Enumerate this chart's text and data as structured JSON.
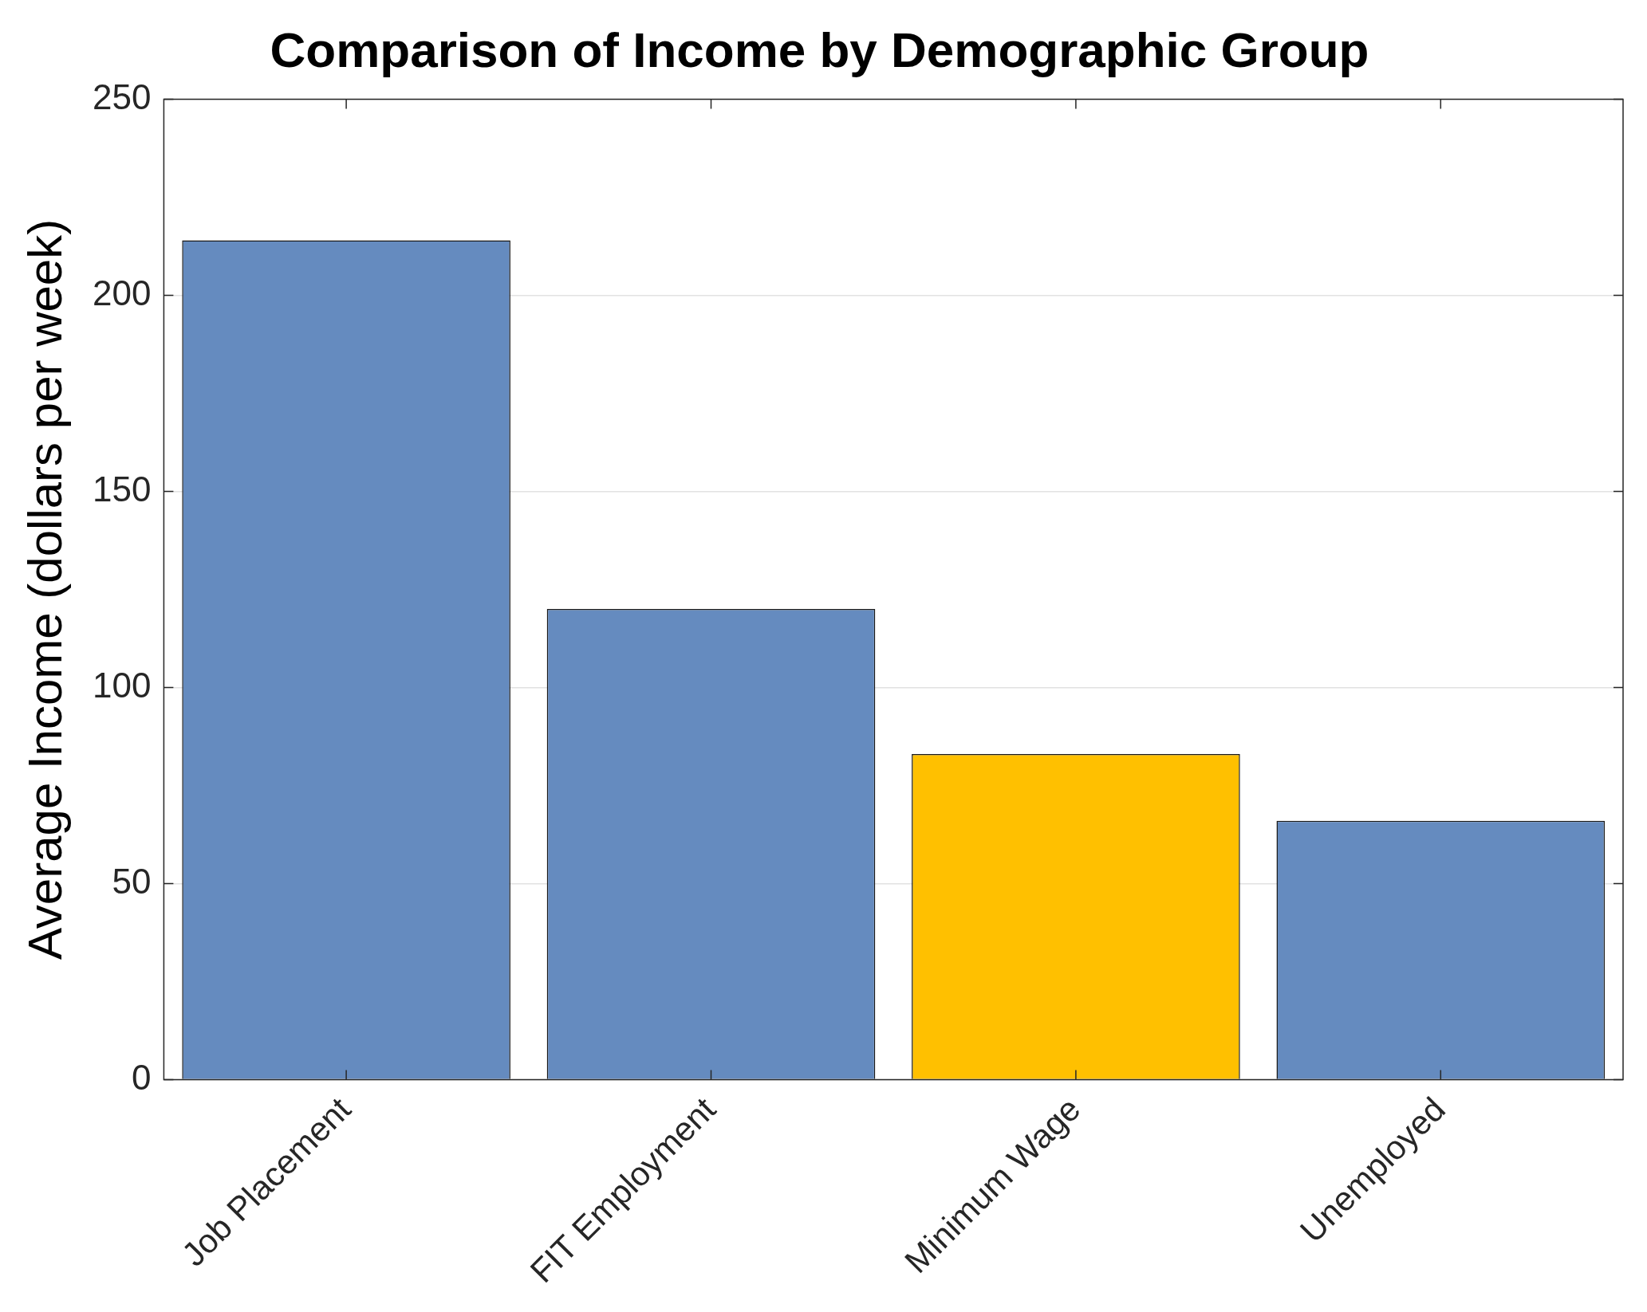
{
  "chart_data": {
    "type": "bar",
    "title": "Comparison of Income by Demographic Group",
    "ylabel": "Average Income (dollars per week)",
    "categories": [
      "Job Placement",
      "FIT Employment",
      "Minimum Wage",
      "Unemployed"
    ],
    "values": [
      214,
      120,
      83,
      66
    ],
    "colors": [
      "#658bbf",
      "#658bbf",
      "#ffc000",
      "#658bbf"
    ],
    "ylim": [
      0,
      250
    ],
    "yticks": [
      0,
      50,
      100,
      150,
      200,
      250
    ],
    "grid": "y"
  }
}
